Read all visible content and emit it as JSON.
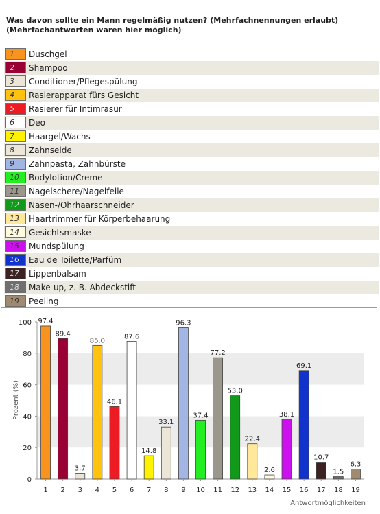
{
  "question": "Was davon sollte ein Mann regelmäßig nutzen? (Mehrfachnennungen erlaubt) (Mehrfachantworten waren hier möglich)",
  "colors": [
    "#f7931e",
    "#990033",
    "#eae5d6",
    "#ffc20e",
    "#ed1c24",
    "#ffffff",
    "#fff200",
    "#ece6d9",
    "#a3b5e2",
    "#22ee22",
    "#9c978c",
    "#119a1a",
    "#ffe89a",
    "#fffbe0",
    "#cc11ee",
    "#1133cc",
    "#3c2222",
    "#6f6f6f",
    "#a08a70"
  ],
  "chart_data": {
    "type": "bar",
    "categories": [
      "1",
      "2",
      "3",
      "4",
      "5",
      "6",
      "7",
      "8",
      "9",
      "10",
      "11",
      "12",
      "13",
      "14",
      "15",
      "16",
      "17",
      "18",
      "19"
    ],
    "legend": [
      "Duschgel",
      "Shampoo",
      "Conditioner/Pflegespülung",
      "Rasierapparat fürs Gesicht",
      "Rasierer für Intimrasur",
      "Deo",
      "Haargel/Wachs",
      "Zahnseide",
      "Zahnpasta, Zahnbürste",
      "Bodylotion/Creme",
      "Nagelschere/Nagelfeile",
      "Nasen-/Ohrhaarschneider",
      "Haartrimmer für Körperbehaarung",
      "Gesichtsmaske",
      "Mundspülung",
      "Eau de Toilette/Parfüm",
      "Lippenbalsam",
      "Make-up, z. B. Abdeckstift",
      "Peeling"
    ],
    "values": [
      97.4,
      89.4,
      3.7,
      85.0,
      46.1,
      87.6,
      14.8,
      33.1,
      96.3,
      37.4,
      77.2,
      53.0,
      22.4,
      2.6,
      38.1,
      69.1,
      10.7,
      1.5,
      6.3
    ],
    "value_labels": [
      "97.4",
      "89.4",
      "3.7",
      "85.0",
      "46.1",
      "87.6",
      "14.8",
      "33.1",
      "96.3",
      "37.4",
      "77.2",
      "53.0",
      "22.4",
      "2.6",
      "38.1",
      "69.1",
      "10.7",
      "1.5",
      "6.3"
    ],
    "ylabel": "Prozent (%)",
    "xlabel": "Antwortmöglichkeiten",
    "ylim": [
      0,
      100
    ],
    "yticks": [
      "0",
      "20",
      "40",
      "60",
      "80",
      "100"
    ]
  }
}
